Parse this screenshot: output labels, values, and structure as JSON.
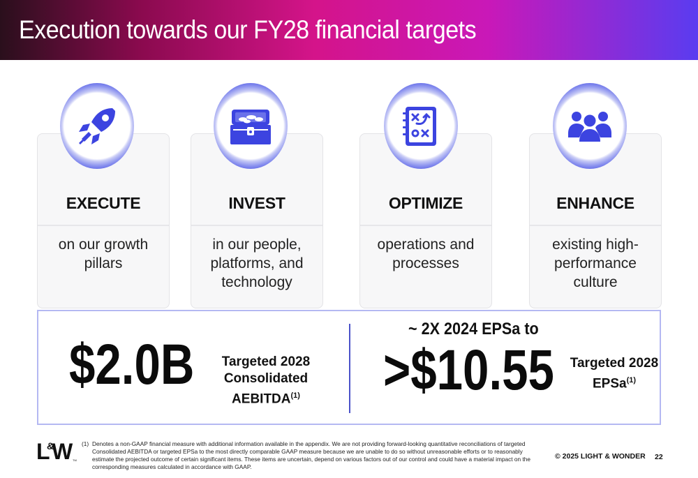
{
  "header": {
    "title": "Execution towards our FY28 financial targets"
  },
  "pillars": [
    {
      "icon": "rocket-icon",
      "title": "EXECUTE",
      "description": "on our growth pillars"
    },
    {
      "icon": "treasure-chest-icon",
      "title": "INVEST",
      "description": "in our people, platforms, and technology"
    },
    {
      "icon": "strategy-board-icon",
      "title": "OPTIMIZE",
      "description": "operations and processes"
    },
    {
      "icon": "people-group-icon",
      "title": "ENHANCE",
      "description": "existing high-performance culture"
    }
  ],
  "targets": {
    "aebitda": {
      "value": "$2.0B",
      "label_line1": "Targeted 2028",
      "label_line2": "Consolidated",
      "label_line3": "AEBITDA",
      "footnote_ref": "(1)"
    },
    "eps": {
      "prefix": "~ 2X 2024 EPSa to",
      "value": ">$10.55",
      "label_line1": "Targeted 2028",
      "label_line2": "EPSa",
      "footnote_ref": "(1)"
    }
  },
  "footer": {
    "logo_text": "L&W",
    "footnote_number": "(1)",
    "footnote_text": "Denotes a non-GAAP financial measure with additional information available in the appendix. We are not providing forward-looking quantitative reconciliations of targeted Consolidated AEBITDA or targeted EPSa to the most directly comparable GAAP measure because we are unable to do so without unreasonable efforts or to reasonably estimate the projected outcome of certain significant items. These items are uncertain, depend on various factors out of our control and could have a material impact on the corresponding measures calculated in accordance with GAAP.",
    "copyright": "© 2025 LIGHT & WONDER",
    "page_number": "22"
  },
  "colors": {
    "accent": "#4b52e0",
    "icon_blue": "#3c44e0",
    "ring": "#7b82ec"
  }
}
